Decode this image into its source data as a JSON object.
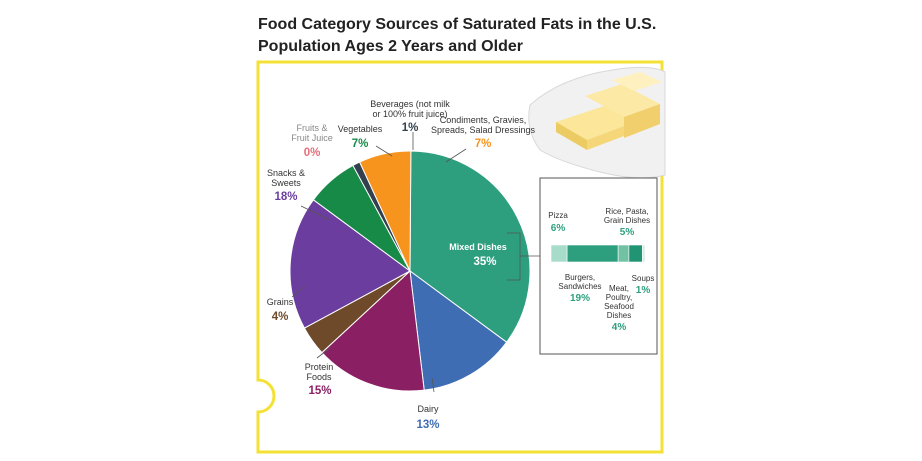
{
  "chart_data": {
    "type": "pie",
    "title": "Food Category Sources of Saturated Fats in the U.S. Population Ages 2 Years and Older",
    "slices": [
      {
        "name": "Mixed Dishes",
        "value": 35,
        "label": "35%",
        "color": "#2e9f7e"
      },
      {
        "name": "Dairy",
        "value": 13,
        "label": "13%",
        "color": "#3f6db3"
      },
      {
        "name": "Protein Foods",
        "value": 15,
        "label": "15%",
        "color": "#8a2063"
      },
      {
        "name": "Grains",
        "value": 4,
        "label": "4%",
        "color": "#6e4a2a"
      },
      {
        "name": "Snacks & Sweets",
        "value": 18,
        "label": "18%",
        "color": "#6b3d9e"
      },
      {
        "name": "Fruits & Fruit Juice",
        "value": 0,
        "label": "0%",
        "color": "#e46f7b"
      },
      {
        "name": "Vegetables",
        "value": 7,
        "label": "7%",
        "color": "#188a48"
      },
      {
        "name": "Beverages (not milk or 100% fruit juice)",
        "value": 1,
        "label": "1%",
        "color": "#33404f"
      },
      {
        "name": "Condiments, Gravies, Spreads, Salad Dressings",
        "value": 7,
        "label": "7%",
        "color": "#f7941d"
      }
    ],
    "mixed_dishes_breakdown": [
      {
        "name": "Pizza",
        "value": 6,
        "label": "6%",
        "color": "#a8dcca"
      },
      {
        "name": "Burgers, Sandwiches",
        "value": 19,
        "label": "19%",
        "color": "#2e9f7e"
      },
      {
        "name": "Meat, Poultry, Seafood Dishes",
        "value": 4,
        "label": "4%",
        "color": "#71c2a4"
      },
      {
        "name": "Rice, Pasta, Grain Dishes",
        "value": 5,
        "label": "5%",
        "color": "#219474"
      },
      {
        "name": "Soups",
        "value": 1,
        "label": "1%",
        "color": "#d4efe4"
      }
    ]
  },
  "labels": {
    "mixed_dishes": {
      "name": "Mixed Dishes",
      "pct": "35%"
    },
    "dairy": {
      "name": "Dairy",
      "pct": "13%"
    },
    "protein_line1": "Protein",
    "protein_line2": "Foods",
    "protein_pct": "15%",
    "grains": {
      "name": "Grains",
      "pct": "4%"
    },
    "snacks_line1": "Snacks &",
    "snacks_line2": "Sweets",
    "snacks_pct": "18%",
    "fruits_line1": "Fruits &",
    "fruits_line2": "Fruit Juice",
    "fruits_pct": "0%",
    "vegetables": {
      "name": "Vegetables",
      "pct": "7%"
    },
    "beverages_line1": "Beverages (not milk",
    "beverages_line2": "or 100% fruit juice)",
    "beverages_pct": "1%",
    "condiments_line1": "Condiments, Gravies,",
    "condiments_line2": "Spreads, Salad Dressings",
    "condiments_pct": "7%",
    "pizza": {
      "name": "Pizza",
      "pct": "6%"
    },
    "burgers_line1": "Burgers,",
    "burgers_line2": "Sandwiches",
    "burgers_pct": "19%",
    "meat_line1": "Meat,",
    "meat_line2": "Poultry,",
    "meat_line3": "Seafood",
    "meat_line4": "Dishes",
    "meat_pct": "4%",
    "rice_line1": "Rice, Pasta,",
    "rice_line2": "Grain Dishes",
    "rice_pct": "5%",
    "soups": {
      "name": "Soups",
      "pct": "1%"
    }
  },
  "colors": {
    "frame": "#f4e135",
    "inset_border": "#555555",
    "text": "#333333"
  },
  "decoration": {
    "image": "butter-illustration"
  }
}
